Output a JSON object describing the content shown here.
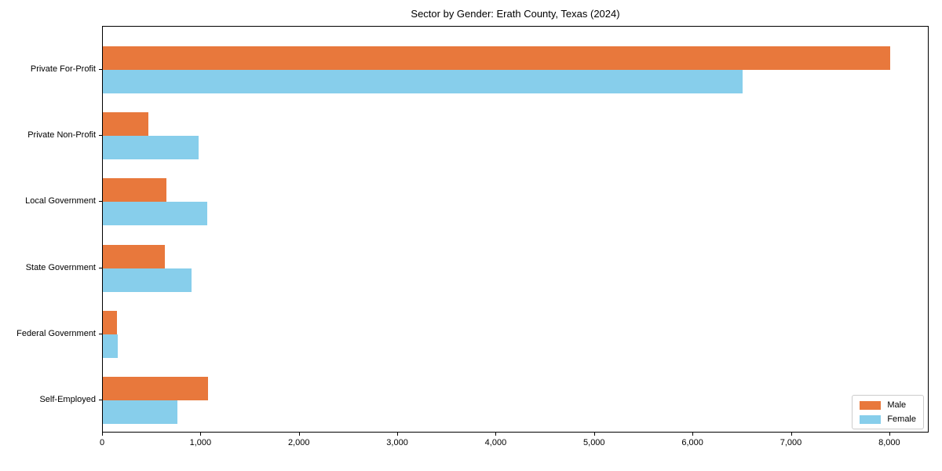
{
  "title": "Sector by Gender: Erath County, Texas (2024)",
  "chart_data": {
    "type": "bar",
    "orientation": "horizontal",
    "title": "Sector by Gender: Erath County, Texas (2024)",
    "categories": [
      "Private For-Profit",
      "Private Non-Profit",
      "Local Government",
      "State Government",
      "Federal Government",
      "Self-Employed"
    ],
    "series": [
      {
        "name": "Male",
        "color": "#e8783c",
        "values": [
          8000,
          460,
          645,
          630,
          140,
          1070
        ]
      },
      {
        "name": "Female",
        "color": "#87ceeb",
        "values": [
          6500,
          975,
          1060,
          900,
          150,
          755
        ]
      }
    ],
    "xlabel": "",
    "ylabel": "",
    "xlim": [
      0,
      8400
    ],
    "xticks": [
      0,
      1000,
      2000,
      3000,
      4000,
      5000,
      6000,
      7000,
      8000
    ],
    "xtick_labels": [
      "0",
      "1,000",
      "2,000",
      "3,000",
      "4,000",
      "5,000",
      "6,000",
      "7,000",
      "8,000"
    ],
    "grid": false,
    "legend_position": "lower right"
  }
}
